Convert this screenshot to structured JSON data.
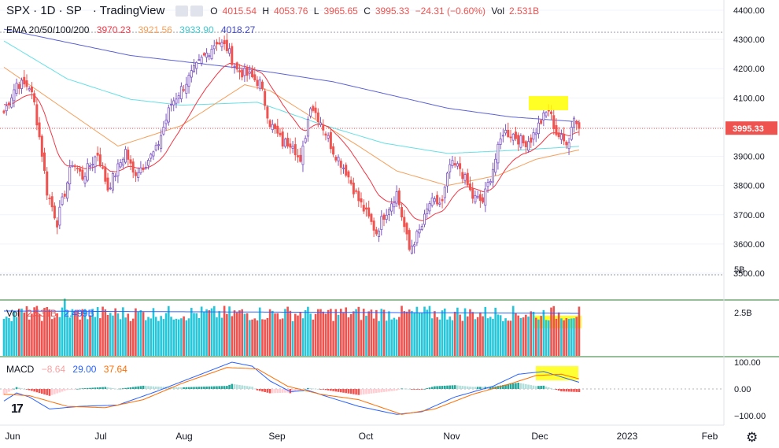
{
  "header": {
    "symbol": "SPX · 1D · SP",
    "source": "· TradingView",
    "open_label": "O",
    "open": "4015.54",
    "high_label": "H",
    "high": "4053.76",
    "low_label": "L",
    "low": "3965.65",
    "close_label": "C",
    "close": "3995.33",
    "change": "−24.31 (−0.60%)",
    "vol_label": "Vol",
    "vol_value": "2.531B"
  },
  "ema_legend": {
    "label": "EMA 20/50/100/200",
    "v20": "3970.23",
    "v50": "3921.56",
    "v100": "3933.90",
    "v200": "4018.27"
  },
  "vol_legend": {
    "label": "Vol",
    "v1": "2.531B",
    "v2": "2.499B"
  },
  "macd_legend": {
    "label": "MACD",
    "hist": "−8.64",
    "macd": "29.00",
    "signal": "37.64"
  },
  "colors": {
    "up": "#26a69a",
    "down": "#ef5350",
    "ema20": "#f23645",
    "ema50": "#f5a05b",
    "ema100": "#65e0e6",
    "ema200": "#5c62d6",
    "macd": "#2962ff",
    "signal": "#ff6d00",
    "highlight": "#ffff00",
    "vol_up": "#26c6da",
    "vol_down": "#ef5350"
  },
  "icons": [
    "tradingview-logo-icon",
    "settings-gear-icon"
  ],
  "chart_data": {
    "type": "candlestick",
    "symbol": "SPX",
    "interval": "1D",
    "price_axis": {
      "ticks": [
        "3500.00",
        "3600.00",
        "3700.00",
        "3800.00",
        "3900.00",
        "4000.00",
        "4100.00",
        "4200.00",
        "4300.00",
        "4400.00"
      ],
      "range": [
        3450,
        4440
      ]
    },
    "last_price_label": "3995.33",
    "time_axis": {
      "labels": [
        "Jun",
        "Jul",
        "Aug",
        "Sep",
        "Oct",
        "Nov",
        "Dec",
        "2023",
        "Feb"
      ]
    },
    "price_keys": [
      [
        0,
        4050
      ],
      [
        5,
        4150
      ],
      [
        10,
        4140
      ],
      [
        12,
        4080
      ],
      [
        15,
        3910
      ],
      [
        17,
        3780
      ],
      [
        21,
        3675
      ],
      [
        27,
        3880
      ],
      [
        31,
        3830
      ],
      [
        37,
        3910
      ],
      [
        41,
        3790
      ],
      [
        45,
        3860
      ],
      [
        48,
        3920
      ],
      [
        51,
        3840
      ],
      [
        55,
        3870
      ],
      [
        60,
        3920
      ],
      [
        66,
        4080
      ],
      [
        72,
        4155
      ],
      [
        78,
        4230
      ],
      [
        84,
        4295
      ],
      [
        88,
        4270
      ],
      [
        92,
        4195
      ],
      [
        97,
        4175
      ],
      [
        101,
        4150
      ],
      [
        105,
        4015
      ],
      [
        110,
        3945
      ],
      [
        114,
        3950
      ],
      [
        117,
        3870
      ],
      [
        121,
        4080
      ],
      [
        125,
        4020
      ],
      [
        130,
        3920
      ],
      [
        135,
        3850
      ],
      [
        140,
        3750
      ],
      [
        147,
        3640
      ],
      [
        150,
        3700
      ],
      [
        155,
        3775
      ],
      [
        160,
        3580
      ],
      [
        165,
        3660
      ],
      [
        168,
        3740
      ],
      [
        173,
        3740
      ],
      [
        176,
        3870
      ],
      [
        180,
        3860
      ],
      [
        185,
        3760
      ],
      [
        189,
        3745
      ],
      [
        193,
        3860
      ],
      [
        197,
        3985
      ],
      [
        201,
        3975
      ],
      [
        205,
        3945
      ],
      [
        208,
        3960
      ],
      [
        212,
        4020
      ],
      [
        215,
        4060
      ],
      [
        218,
        3980
      ],
      [
        221,
        3950
      ],
      [
        223,
        3960
      ],
      [
        225,
        4040
      ],
      [
        227,
        3990
      ]
    ],
    "ema200_keys": [
      [
        0,
        4335
      ],
      [
        50,
        4245
      ],
      [
        100,
        4195
      ],
      [
        130,
        4155
      ],
      [
        175,
        4065
      ],
      [
        200,
        4035
      ],
      [
        227,
        4018
      ]
    ],
    "ema100_keys": [
      [
        0,
        4295
      ],
      [
        25,
        4165
      ],
      [
        50,
        4095
      ],
      [
        70,
        4075
      ],
      [
        100,
        4085
      ],
      [
        125,
        4010
      ],
      [
        150,
        3945
      ],
      [
        175,
        3910
      ],
      [
        200,
        3920
      ],
      [
        227,
        3934
      ]
    ],
    "ema50_keys": [
      [
        0,
        4205
      ],
      [
        20,
        4085
      ],
      [
        45,
        3935
      ],
      [
        70,
        4005
      ],
      [
        95,
        4145
      ],
      [
        105,
        4125
      ],
      [
        125,
        4015
      ],
      [
        140,
        3935
      ],
      [
        155,
        3850
      ],
      [
        175,
        3800
      ],
      [
        195,
        3835
      ],
      [
        210,
        3890
      ],
      [
        227,
        3922
      ]
    ],
    "macd_keys": [
      [
        0,
        -45
      ],
      [
        5,
        -15
      ],
      [
        10,
        -30
      ],
      [
        18,
        -75
      ],
      [
        30,
        -65
      ],
      [
        45,
        -60
      ],
      [
        60,
        -10
      ],
      [
        75,
        45
      ],
      [
        90,
        100
      ],
      [
        98,
        85
      ],
      [
        105,
        30
      ],
      [
        113,
        -10
      ],
      [
        120,
        -5
      ],
      [
        128,
        -30
      ],
      [
        140,
        -65
      ],
      [
        155,
        -95
      ],
      [
        165,
        -85
      ],
      [
        178,
        -30
      ],
      [
        193,
        10
      ],
      [
        203,
        55
      ],
      [
        213,
        65
      ],
      [
        220,
        45
      ],
      [
        227,
        25
      ]
    ],
    "signal_keys": [
      [
        0,
        -20
      ],
      [
        10,
        -25
      ],
      [
        25,
        -65
      ],
      [
        40,
        -70
      ],
      [
        55,
        -40
      ],
      [
        70,
        20
      ],
      [
        88,
        80
      ],
      [
        100,
        75
      ],
      [
        112,
        10
      ],
      [
        125,
        -20
      ],
      [
        140,
        -40
      ],
      [
        157,
        -95
      ],
      [
        170,
        -75
      ],
      [
        185,
        -20
      ],
      [
        200,
        20
      ],
      [
        210,
        50
      ],
      [
        220,
        55
      ],
      [
        227,
        38
      ]
    ],
    "volume_axis": {
      "ticks": [
        "2.5B",
        "5B"
      ]
    },
    "macd_axis": {
      "ticks": [
        "−100.00",
        "0.00",
        "100.00"
      ]
    },
    "highlights": [
      "price-top-right",
      "volume-top-right",
      "macd-top-right"
    ]
  }
}
